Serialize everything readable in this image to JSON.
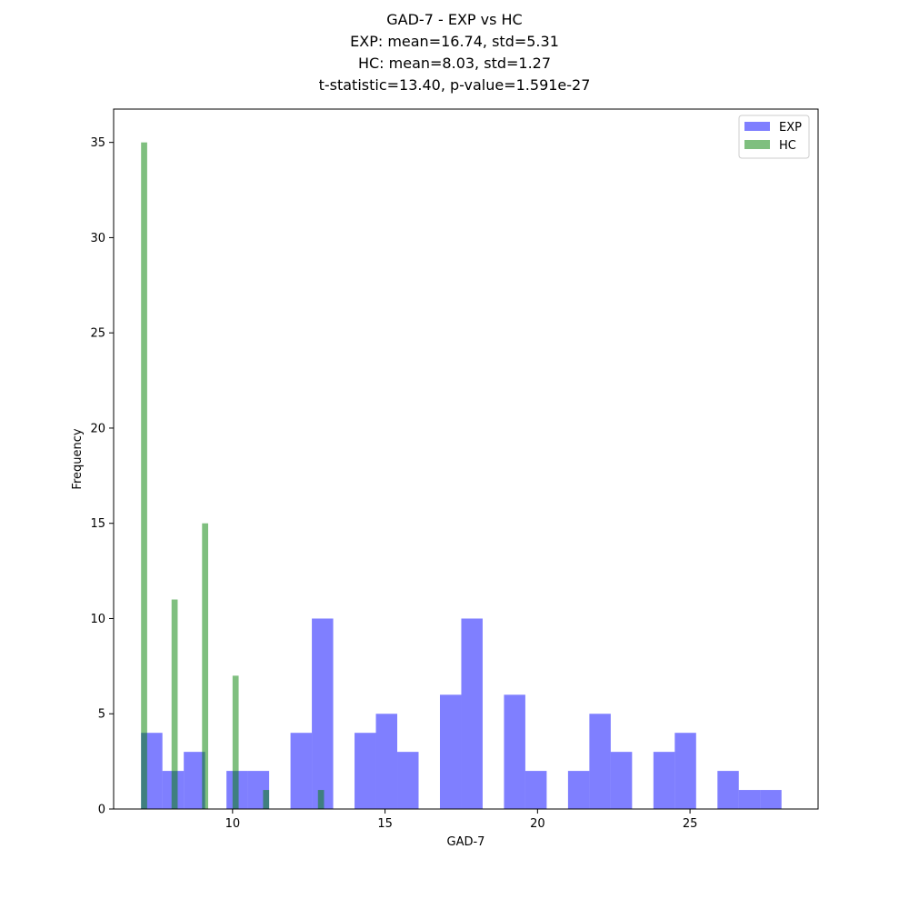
{
  "chart_data": {
    "type": "bar",
    "title_lines": [
      "GAD-7 - EXP vs HC",
      "EXP: mean=16.74, std=5.31",
      "HC: mean=8.03, std=1.27",
      "t-statistic=13.40, p-value=1.591e-27"
    ],
    "xlabel": "GAD-7",
    "ylabel": "Frequency",
    "xlim": [
      6.1,
      29.2
    ],
    "ylim": [
      0,
      36.75
    ],
    "xticks": [
      10,
      15,
      20,
      25
    ],
    "yticks": [
      0,
      5,
      10,
      15,
      20,
      25,
      30,
      35
    ],
    "grid": false,
    "legend_position": "top-right",
    "series": [
      {
        "name": "EXP",
        "color": "#0000ff",
        "opacity": 0.5,
        "bins": [
          {
            "x0": 7.0,
            "x1": 7.7,
            "count": 4
          },
          {
            "x0": 7.7,
            "x1": 8.4,
            "count": 2
          },
          {
            "x0": 8.4,
            "x1": 9.1,
            "count": 3
          },
          {
            "x0": 9.1,
            "x1": 9.8,
            "count": 0
          },
          {
            "x0": 9.8,
            "x1": 10.5,
            "count": 2
          },
          {
            "x0": 10.5,
            "x1": 11.2,
            "count": 2
          },
          {
            "x0": 11.2,
            "x1": 11.9,
            "count": 0
          },
          {
            "x0": 11.9,
            "x1": 12.6,
            "count": 4
          },
          {
            "x0": 12.6,
            "x1": 13.3,
            "count": 10
          },
          {
            "x0": 13.3,
            "x1": 14.0,
            "count": 0
          },
          {
            "x0": 14.0,
            "x1": 14.7,
            "count": 4
          },
          {
            "x0": 14.7,
            "x1": 15.4,
            "count": 5
          },
          {
            "x0": 15.4,
            "x1": 16.1,
            "count": 3
          },
          {
            "x0": 16.1,
            "x1": 16.8,
            "count": 0
          },
          {
            "x0": 16.8,
            "x1": 17.5,
            "count": 6
          },
          {
            "x0": 17.5,
            "x1": 18.2,
            "count": 10
          },
          {
            "x0": 18.2,
            "x1": 18.9,
            "count": 0
          },
          {
            "x0": 18.9,
            "x1": 19.6,
            "count": 6
          },
          {
            "x0": 19.6,
            "x1": 20.3,
            "count": 2
          },
          {
            "x0": 20.3,
            "x1": 21.0,
            "count": 0
          },
          {
            "x0": 21.0,
            "x1": 21.7,
            "count": 2
          },
          {
            "x0": 21.7,
            "x1": 22.4,
            "count": 5
          },
          {
            "x0": 22.4,
            "x1": 23.1,
            "count": 3
          },
          {
            "x0": 23.1,
            "x1": 23.8,
            "count": 0
          },
          {
            "x0": 23.8,
            "x1": 24.5,
            "count": 3
          },
          {
            "x0": 24.5,
            "x1": 25.2,
            "count": 4
          },
          {
            "x0": 25.2,
            "x1": 25.9,
            "count": 0
          },
          {
            "x0": 25.9,
            "x1": 26.6,
            "count": 2
          },
          {
            "x0": 26.6,
            "x1": 27.3,
            "count": 1
          },
          {
            "x0": 27.3,
            "x1": 28.0,
            "count": 1
          }
        ]
      },
      {
        "name": "HC",
        "color": "#008000",
        "opacity": 0.5,
        "bins": [
          {
            "x0": 7.0,
            "x1": 7.2,
            "count": 35
          },
          {
            "x0": 8.0,
            "x1": 8.2,
            "count": 11
          },
          {
            "x0": 9.0,
            "x1": 9.2,
            "count": 15
          },
          {
            "x0": 10.0,
            "x1": 10.2,
            "count": 7
          },
          {
            "x0": 11.0,
            "x1": 11.2,
            "count": 1
          },
          {
            "x0": 12.8,
            "x1": 13.0,
            "count": 1
          }
        ]
      }
    ]
  }
}
